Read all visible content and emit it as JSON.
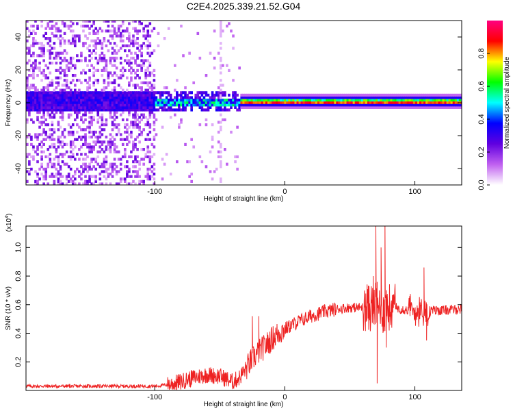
{
  "figure_title": "C2E4.2025.339.21.52.G04",
  "chart_data": [
    {
      "type": "heatmap",
      "title": "C2E4.2025.339.21.52.G04",
      "xlabel": "Height of straight line (km)",
      "ylabel": "Frequency (Hz)",
      "xlim": [
        -199,
        136
      ],
      "ylim": [
        -50,
        50
      ],
      "x_ticks": [
        -100,
        0,
        100
      ],
      "y_ticks": [
        -40,
        -20,
        0,
        20,
        40
      ],
      "x_tick_labels": [
        "-100",
        "0",
        "100"
      ],
      "y_tick_labels": [
        "-40",
        "-20",
        "0",
        "20",
        "40"
      ],
      "colorbar": {
        "label": "Normalized spectral amplitude",
        "range": [
          0,
          1
        ],
        "ticks": [
          0.0,
          0.2,
          0.4,
          0.6,
          0.8
        ],
        "tick_labels": [
          "0.0",
          "0.2",
          "0.4",
          "0.6",
          "0.8"
        ],
        "colormap": [
          "#ffffff",
          "#c060f0",
          "#6000e0",
          "#0000ff",
          "#00ffff",
          "#00ff00",
          "#ffff00",
          "#ff0000",
          "#ff0080"
        ]
      },
      "features": {
        "noise_region_x": [
          -199,
          -100
        ],
        "carrier_frequency_hz": 0,
        "carrier_start_x": -100,
        "spurious_vertical_line_x": -50
      }
    },
    {
      "type": "line",
      "xlabel": "Height of straight line (km)",
      "ylabel": "SNR (10 * v/v)",
      "scale_label": "(x10",
      "scale_exponent": "4",
      "scale_close": ")",
      "xlim": [
        -199,
        136
      ],
      "ylim": [
        0,
        1.15
      ],
      "x_ticks": [
        -100,
        0,
        100
      ],
      "y_ticks": [
        0.2,
        0.4,
        0.6,
        0.8,
        1.0
      ],
      "x_tick_labels": [
        "-100",
        "0",
        "100"
      ],
      "y_tick_labels": [
        "0.2",
        "0.4",
        "0.6",
        "0.8",
        "1.0"
      ],
      "series": [
        {
          "name": "SNR",
          "color": "#ee2222",
          "x": [
            -199,
            -150,
            -100,
            -90,
            -80,
            -70,
            -60,
            -50,
            -45,
            -40,
            -35,
            -30,
            -25,
            -20,
            -15,
            -10,
            -5,
            0,
            10,
            20,
            30,
            40,
            50,
            60,
            65,
            70,
            75,
            80,
            85,
            90,
            95,
            100,
            110,
            120,
            136
          ],
          "values": [
            0.03,
            0.03,
            0.03,
            0.04,
            0.06,
            0.09,
            0.11,
            0.1,
            0.08,
            0.06,
            0.09,
            0.15,
            0.22,
            0.27,
            0.31,
            0.36,
            0.4,
            0.43,
            0.48,
            0.52,
            0.55,
            0.57,
            0.58,
            0.58,
            0.58,
            0.59,
            0.58,
            0.57,
            0.58,
            0.57,
            0.56,
            0.56,
            0.56,
            0.56,
            0.57
          ]
        }
      ],
      "spikes": [
        {
          "x": -25,
          "value": 0.52
        },
        {
          "x": -20,
          "value": 0.52
        },
        {
          "x": 68,
          "value": 0.8
        },
        {
          "x": 70,
          "value": 1.15
        },
        {
          "x": 71,
          "value": 0.05
        },
        {
          "x": 74,
          "value": 1.0
        },
        {
          "x": 77,
          "value": 1.2
        },
        {
          "x": 78,
          "value": 0.3
        },
        {
          "x": 96,
          "value": 0.66
        },
        {
          "x": 107,
          "value": 0.86
        },
        {
          "x": 109,
          "value": 0.35
        }
      ]
    }
  ]
}
